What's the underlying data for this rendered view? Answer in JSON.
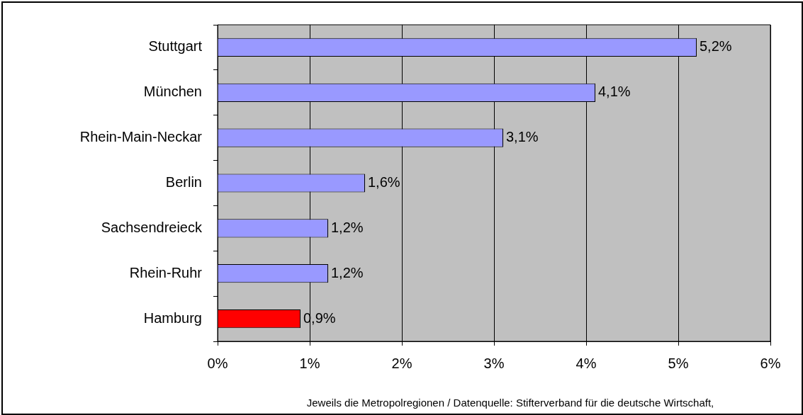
{
  "chart_data": {
    "type": "bar",
    "orientation": "horizontal",
    "categories": [
      "Stuttgart",
      "München",
      "Rhein-Main-Neckar",
      "Berlin",
      "Sachsendreieck",
      "Rhein-Ruhr",
      "Hamburg"
    ],
    "values": [
      5.2,
      4.1,
      3.1,
      1.6,
      1.2,
      1.2,
      0.9
    ],
    "colors": [
      "#9999ff",
      "#9999ff",
      "#9999ff",
      "#9999ff",
      "#9999ff",
      "#9999ff",
      "#ff0000"
    ],
    "value_labels": [
      "5,2%",
      "4,1%",
      "3,1%",
      "1,6%",
      "1,2%",
      "1,2%",
      "0,9%"
    ],
    "xlim": [
      0,
      6
    ],
    "xticks": [
      {
        "value": 0,
        "label": "0%"
      },
      {
        "value": 1,
        "label": "1%"
      },
      {
        "value": 2,
        "label": "2%"
      },
      {
        "value": 3,
        "label": "3%"
      },
      {
        "value": 4,
        "label": "4%"
      },
      {
        "value": 5,
        "label": "5%"
      },
      {
        "value": 6,
        "label": "6%"
      }
    ],
    "grid": "x",
    "annotations": [
      "Jeweils die Metropolregionen / Datenquelle: Stifterverband für die deutsche Wirtschaft,"
    ]
  }
}
